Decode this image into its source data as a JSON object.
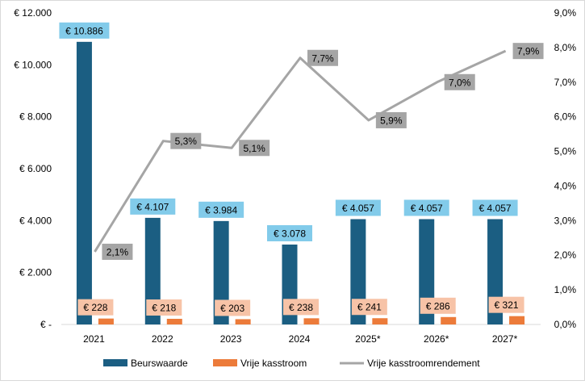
{
  "chart_data": {
    "type": "bar",
    "categories": [
      "2021",
      "2022",
      "2023",
      "2024",
      "2025*",
      "2026*",
      "2027*"
    ],
    "series": [
      {
        "name": "Beurswaarde",
        "kind": "bar",
        "axis": "left",
        "color": "#1b5e82",
        "label_bg": "#82cbea",
        "values": [
          10886,
          4107,
          3984,
          3078,
          4057,
          4057,
          4057
        ],
        "labels": [
          "€ 10.886",
          "€ 4.107",
          "€ 3.984",
          "€ 3.078",
          "€ 4.057",
          "€ 4.057",
          "€ 4.057"
        ]
      },
      {
        "name": "Vrije kasstroom",
        "kind": "bar",
        "axis": "left",
        "color": "#ec7b3a",
        "label_bg": "#f7c3a7",
        "values": [
          228,
          218,
          203,
          238,
          241,
          286,
          321
        ],
        "labels": [
          "€ 228",
          "€ 218",
          "€ 203",
          "€ 238",
          "€ 241",
          "€ 286",
          "€ 321"
        ]
      },
      {
        "name": "Vrije kasstroomrendement",
        "kind": "line",
        "axis": "right",
        "color": "#a5a5a5",
        "label_bg": "#a5a5a5",
        "values": [
          2.1,
          5.3,
          5.1,
          7.7,
          5.9,
          7.0,
          7.9
        ],
        "labels": [
          "2,1%",
          "5,3%",
          "5,1%",
          "7,7%",
          "5,9%",
          "7,0%",
          "7,9%"
        ]
      }
    ],
    "left_axis": {
      "ylim": [
        0,
        12000
      ],
      "ticks": [
        0,
        2000,
        4000,
        6000,
        8000,
        10000,
        12000
      ],
      "tick_labels": [
        "€ -",
        "€ 2.000",
        "€ 4.000",
        "€ 6.000",
        "€ 8.000",
        "€ 10.000",
        "€ 12.000"
      ]
    },
    "right_axis": {
      "ylim": [
        0,
        9
      ],
      "ticks": [
        0,
        1,
        2,
        3,
        4,
        5,
        6,
        7,
        8,
        9
      ],
      "tick_labels": [
        "0,0%",
        "1,0%",
        "2,0%",
        "3,0%",
        "4,0%",
        "5,0%",
        "6,0%",
        "7,0%",
        "8,0%",
        "9,0%"
      ]
    },
    "grid": false,
    "legend": "bottom"
  }
}
